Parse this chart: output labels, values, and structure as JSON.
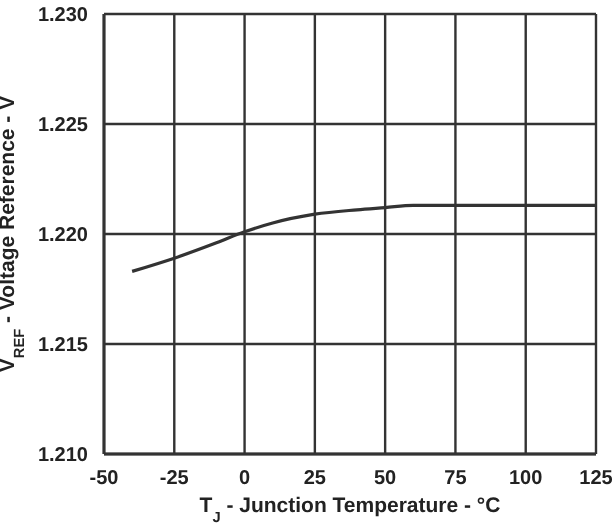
{
  "chart_data": {
    "type": "line",
    "xlabel": "T$_{J}$ - Junction Temperature -  °C",
    "ylabel": "V$_{REF}$ - Voltage Reference - V",
    "series": [
      {
        "color": "#333333",
        "x": [
          -40,
          -25,
          -10,
          0,
          10,
          25,
          40,
          50,
          60,
          80,
          100,
          125
        ],
        "values": [
          1.2183,
          1.2189,
          1.2196,
          1.2201,
          1.2205,
          1.2209,
          1.2211,
          1.2212,
          1.2213,
          1.2213,
          1.2213,
          1.2213
        ]
      }
    ],
    "xlim": [
      -50,
      125
    ],
    "xticks": [
      -50,
      -25,
      0,
      25,
      50,
      75,
      100,
      125
    ],
    "ylim": [
      1.21,
      1.23
    ],
    "yticks": [
      {
        "value": 1.21,
        "label": "1.210"
      },
      {
        "value": 1.215,
        "label": "1.215"
      },
      {
        "value": 1.22,
        "label": "1.220"
      },
      {
        "value": 1.225,
        "label": "1.225"
      },
      {
        "value": 1.23,
        "label": "1.230"
      }
    ],
    "grid": true,
    "marker": "none",
    "line_style": "solid"
  }
}
